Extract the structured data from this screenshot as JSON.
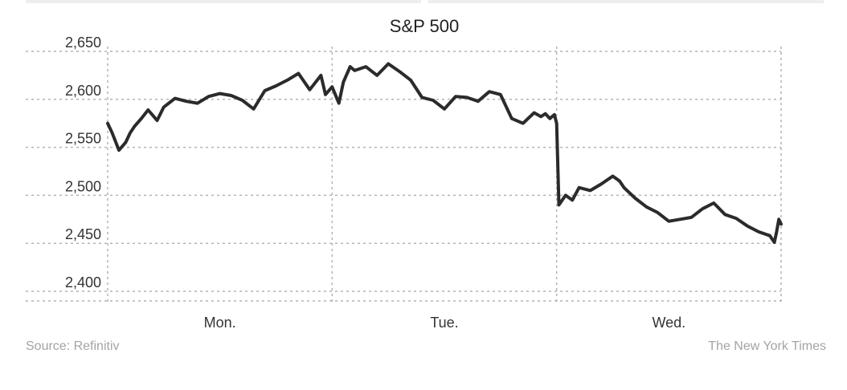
{
  "chart_data": {
    "type": "line",
    "title": "S&P 500",
    "xlabel": "",
    "ylabel": "",
    "ylim": [
      2390,
      2655
    ],
    "y_ticks": [
      {
        "value": 2650,
        "label": "2,650"
      },
      {
        "value": 2600,
        "label": "2,600"
      },
      {
        "value": 2550,
        "label": "2,550"
      },
      {
        "value": 2500,
        "label": "2,500"
      },
      {
        "value": 2450,
        "label": "2,450"
      },
      {
        "value": 2400,
        "label": "2,400"
      }
    ],
    "x_domain": [
      0,
      3
    ],
    "x_tick_labels": [
      {
        "label": "Mon.",
        "position": 0.5
      },
      {
        "label": "Tue.",
        "position": 1.5
      },
      {
        "label": "Wed.",
        "position": 2.5
      }
    ],
    "day_boundaries": [
      0,
      1,
      2,
      3
    ],
    "grid": true,
    "series": [
      {
        "color": "#2b2b2b",
        "x": [
          0.0,
          0.02,
          0.05,
          0.08,
          0.1,
          0.12,
          0.15,
          0.18,
          0.22,
          0.25,
          0.3,
          0.35,
          0.4,
          0.45,
          0.5,
          0.55,
          0.6,
          0.65,
          0.7,
          0.75,
          0.8,
          0.85,
          0.9,
          0.95,
          0.97,
          1.0,
          1.03,
          1.05,
          1.08,
          1.1,
          1.15,
          1.2,
          1.25,
          1.3,
          1.35,
          1.4,
          1.45,
          1.5,
          1.55,
          1.6,
          1.65,
          1.7,
          1.75,
          1.8,
          1.85,
          1.9,
          1.93,
          1.95,
          1.97,
          1.99,
          2.0,
          2.01,
          2.04,
          2.07,
          2.1,
          2.15,
          2.2,
          2.25,
          2.28,
          2.3,
          2.35,
          2.4,
          2.45,
          2.5,
          2.55,
          2.6,
          2.65,
          2.7,
          2.75,
          2.8,
          2.85,
          2.9,
          2.95,
          2.97,
          2.98,
          2.99,
          3.0
        ],
        "y": [
          2575,
          2565,
          2547,
          2555,
          2565,
          2572,
          2580,
          2589,
          2578,
          2592,
          2601,
          2598,
          2596,
          2603,
          2606,
          2604,
          2599,
          2590,
          2609,
          2614,
          2620,
          2627,
          2610,
          2625,
          2605,
          2613,
          2596,
          2618,
          2634,
          2630,
          2634,
          2625,
          2637,
          2629,
          2620,
          2602,
          2599,
          2590,
          2603,
          2602,
          2598,
          2608,
          2605,
          2580,
          2575,
          2586,
          2582,
          2585,
          2580,
          2584,
          2575,
          2490,
          2500,
          2495,
          2508,
          2505,
          2512,
          2520,
          2515,
          2508,
          2497,
          2488,
          2482,
          2473,
          2475,
          2477,
          2486,
          2492,
          2480,
          2476,
          2468,
          2462,
          2458,
          2451,
          2462,
          2475,
          2470
        ]
      }
    ]
  },
  "footer": {
    "source": "Source: Refinitiv",
    "credit": "The New York Times"
  }
}
